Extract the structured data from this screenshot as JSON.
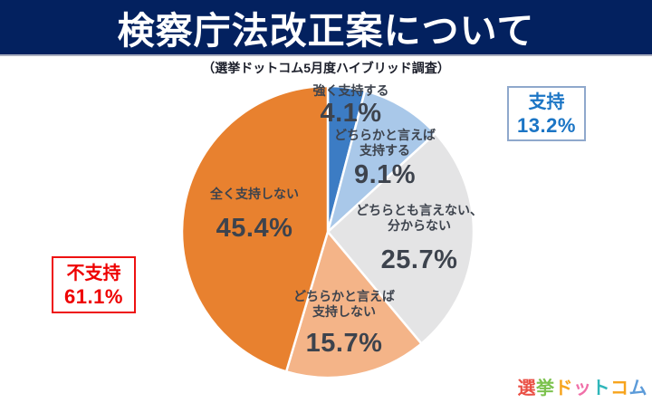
{
  "header": {
    "title": "検察庁法改正案について"
  },
  "subtitle": "（選挙ドットコム5月度ハイブリッド調査）",
  "chart_data": {
    "type": "pie",
    "title": "検察庁法改正案について",
    "subtitle": "（選挙ドットコム5月度ハイブリッド調査）",
    "unit": "%",
    "start_angle_deg": 0,
    "direction": "clockwise",
    "slices": [
      {
        "label": "強く支持する",
        "label_lines": [
          "強く支持する"
        ],
        "value": 4.1,
        "display": "4.1%",
        "color": "#3c7cc4"
      },
      {
        "label": "どちらかと言えば支持する",
        "label_lines": [
          "どちらかと言えば",
          "支持する"
        ],
        "value": 9.1,
        "display": "9.1%",
        "color": "#a9c8e9"
      },
      {
        "label": "どちらとも言えない、分からない",
        "label_lines": [
          "どちらとも言えない、",
          "分からない"
        ],
        "value": 25.7,
        "display": "25.7%",
        "color": "#e4e4e5"
      },
      {
        "label": "どちらかと言えば支持しない",
        "label_lines": [
          "どちらかと言えば",
          "支持しない"
        ],
        "value": 15.7,
        "display": "15.7%",
        "color": "#f4b488"
      },
      {
        "label": "全く支持しない",
        "label_lines": [
          "全く支持しない"
        ],
        "value": 45.4,
        "display": "45.4%",
        "color": "#e8812f"
      }
    ]
  },
  "annotations": {
    "support": {
      "label": "支持",
      "value": "13.2%",
      "text_color": "#1b75c5",
      "border_color": "#8fa8cc"
    },
    "oppose": {
      "label": "不支持",
      "value": "61.1%",
      "text_color": "#ee0000",
      "border_color": "#ee1111"
    }
  },
  "logo": {
    "text": "選挙ドットコム",
    "chars": [
      {
        "ch": "選",
        "color": "#ea5045"
      },
      {
        "ch": "挙",
        "color": "#7cc24e"
      },
      {
        "ch": "ド",
        "color": "#f7a41d"
      },
      {
        "ch": "ッ",
        "color": "#f06fa8"
      },
      {
        "ch": "ト",
        "color": "#2fb6ba"
      },
      {
        "ch": "コ",
        "color": "#f7a41d"
      },
      {
        "ch": "ム",
        "color": "#5c9bd9"
      }
    ]
  }
}
